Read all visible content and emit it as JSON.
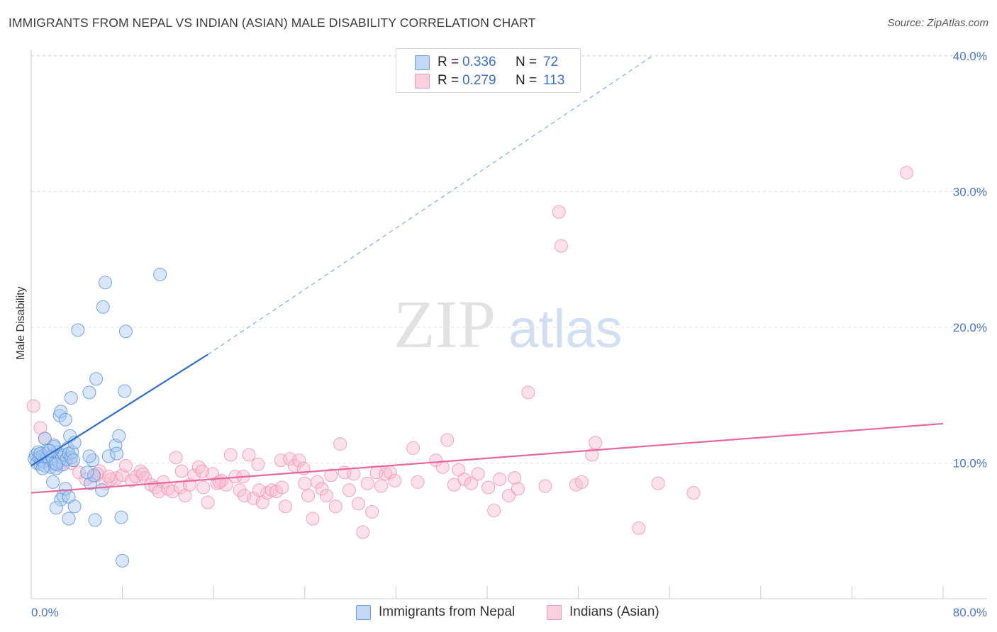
{
  "header": {
    "title": "IMMIGRANTS FROM NEPAL VS INDIAN (ASIAN) MALE DISABILITY CORRELATION CHART",
    "source": "Source: ZipAtlas.com"
  },
  "watermark": {
    "zip": "ZIP",
    "atlas": "atlas"
  },
  "legend_top": {
    "rows": [
      {
        "r_label": "R =",
        "r_value": "0.336",
        "n_label": "N =",
        "n_value": "72",
        "color": "#a8c8f0"
      },
      {
        "r_label": "R =",
        "r_value": "0.279",
        "n_label": "N =",
        "n_value": "113",
        "color": "#f5b8cb"
      }
    ]
  },
  "legend_bottom": {
    "items": [
      {
        "label": "Immigrants from Nepal",
        "color": "#a8c8f0"
      },
      {
        "label": "Indians (Asian)",
        "color": "#f5b8cb"
      }
    ]
  },
  "chart_data": {
    "type": "scatter",
    "title": "IMMIGRANTS FROM NEPAL VS INDIAN (ASIAN) MALE DISABILITY CORRELATION CHART",
    "xlabel": "",
    "ylabel": "Male Disability",
    "xlim": [
      0,
      80
    ],
    "ylim": [
      0,
      40
    ],
    "x_tick_labels": [
      "0.0%",
      "80.0%"
    ],
    "y_tick_labels": [
      "10.0%",
      "20.0%",
      "30.0%",
      "40.0%"
    ],
    "y_ticks": [
      10,
      20,
      30,
      40
    ],
    "grid": "horizontal dashed",
    "legend_placement": "top-center and bottom",
    "colors": {
      "nepal": "#5b9be0",
      "indian": "#f08bb0",
      "nepal_line": "#2f6fcc",
      "indian_line": "#e8679a",
      "axis_text": "#4a78c8"
    },
    "series": [
      {
        "name": "Immigrants from Nepal",
        "stats": {
          "R": 0.336,
          "N": 72
        },
        "trend": {
          "x0": 0,
          "y0": 9.8,
          "x1": 15.5,
          "y1": 18.0,
          "dashed_to_x": 54.5,
          "dashed_to_y": 40.0
        },
        "points": [
          [
            0.3,
            10.3
          ],
          [
            0.4,
            10.6
          ],
          [
            0.5,
            10.0
          ],
          [
            0.6,
            10.8
          ],
          [
            0.7,
            10.4
          ],
          [
            0.8,
            9.9
          ],
          [
            0.9,
            10.2
          ],
          [
            1.0,
            10.5
          ],
          [
            1.1,
            10.1
          ],
          [
            1.2,
            9.8
          ],
          [
            1.3,
            10.7
          ],
          [
            1.4,
            10.4
          ],
          [
            1.5,
            11.0
          ],
          [
            1.6,
            10.2
          ],
          [
            1.7,
            9.7
          ],
          [
            1.8,
            10.5
          ],
          [
            1.9,
            10.3
          ],
          [
            2.0,
            11.2
          ],
          [
            2.1,
            10.0
          ],
          [
            2.2,
            9.6
          ],
          [
            2.3,
            10.8
          ],
          [
            2.4,
            10.1
          ],
          [
            2.5,
            13.5
          ],
          [
            2.6,
            13.8
          ],
          [
            2.7,
            10.4
          ],
          [
            2.8,
            9.9
          ],
          [
            2.9,
            10.6
          ],
          [
            3.0,
            13.2
          ],
          [
            3.1,
            10.3
          ],
          [
            3.2,
            11.1
          ],
          [
            3.3,
            10.7
          ],
          [
            3.4,
            12.0
          ],
          [
            3.5,
            10.4
          ],
          [
            3.6,
            10.8
          ],
          [
            3.7,
            10.2
          ],
          [
            3.8,
            11.5
          ],
          [
            2.0,
            11.3
          ],
          [
            1.2,
            11.8
          ],
          [
            0.8,
            10.7
          ],
          [
            1.6,
            10.9
          ],
          [
            2.6,
            7.3
          ],
          [
            2.8,
            7.6
          ],
          [
            3.0,
            8.1
          ],
          [
            3.3,
            7.5
          ],
          [
            3.8,
            6.8
          ],
          [
            1.9,
            8.6
          ],
          [
            5.2,
            8.5
          ],
          [
            5.5,
            9.1
          ],
          [
            4.9,
            9.3
          ],
          [
            3.5,
            14.8
          ],
          [
            4.1,
            19.8
          ],
          [
            5.1,
            15.2
          ],
          [
            5.7,
            16.2
          ],
          [
            5.4,
            10.2
          ],
          [
            5.1,
            10.5
          ],
          [
            3.3,
            5.9
          ],
          [
            5.6,
            5.8
          ],
          [
            6.2,
            8.0
          ],
          [
            6.3,
            21.5
          ],
          [
            6.5,
            23.3
          ],
          [
            6.8,
            10.5
          ],
          [
            7.4,
            11.3
          ],
          [
            7.5,
            10.7
          ],
          [
            7.7,
            12.0
          ],
          [
            8.2,
            15.3
          ],
          [
            8.3,
            19.7
          ],
          [
            11.3,
            23.9
          ],
          [
            8.0,
            2.8
          ],
          [
            7.9,
            6.0
          ],
          [
            2.2,
            6.7
          ],
          [
            1.0,
            9.6
          ],
          [
            2.2,
            9.9
          ]
        ]
      },
      {
        "name": "Indians (Asian)",
        "stats": {
          "R": 0.279,
          "N": 113
        },
        "trend": {
          "x0": 0,
          "y0": 7.8,
          "x1": 80,
          "y1": 12.9
        },
        "points": [
          [
            0.2,
            14.2
          ],
          [
            0.8,
            12.6
          ],
          [
            1.2,
            11.8
          ],
          [
            1.8,
            10.5
          ],
          [
            2.5,
            9.8
          ],
          [
            3.0,
            10.2
          ],
          [
            3.5,
            10.0
          ],
          [
            4.2,
            9.3
          ],
          [
            4.8,
            8.8
          ],
          [
            5.5,
            9.0
          ],
          [
            6.0,
            9.4
          ],
          [
            6.5,
            8.5
          ],
          [
            7.0,
            8.8
          ],
          [
            7.5,
            8.9
          ],
          [
            8.0,
            9.1
          ],
          [
            8.3,
            9.8
          ],
          [
            8.8,
            8.7
          ],
          [
            9.2,
            9.0
          ],
          [
            9.6,
            9.4
          ],
          [
            10.0,
            8.9
          ],
          [
            10.5,
            8.4
          ],
          [
            10.9,
            8.2
          ],
          [
            11.2,
            7.9
          ],
          [
            11.6,
            8.6
          ],
          [
            12.0,
            8.1
          ],
          [
            12.4,
            7.9
          ],
          [
            12.7,
            10.4
          ],
          [
            13.1,
            8.2
          ],
          [
            13.5,
            7.6
          ],
          [
            13.9,
            8.4
          ],
          [
            14.3,
            9.1
          ],
          [
            14.7,
            9.7
          ],
          [
            15.1,
            8.2
          ],
          [
            15.5,
            7.1
          ],
          [
            15.9,
            9.2
          ],
          [
            16.3,
            8.5
          ],
          [
            16.7,
            8.7
          ],
          [
            17.1,
            8.4
          ],
          [
            17.5,
            10.6
          ],
          [
            17.9,
            9.0
          ],
          [
            18.3,
            8.0
          ],
          [
            18.7,
            7.6
          ],
          [
            19.1,
            10.6
          ],
          [
            19.5,
            7.4
          ],
          [
            19.9,
            9.9
          ],
          [
            20.3,
            7.1
          ],
          [
            20.7,
            7.8
          ],
          [
            21.1,
            8.0
          ],
          [
            21.5,
            7.9
          ],
          [
            21.9,
            10.2
          ],
          [
            22.3,
            6.8
          ],
          [
            22.7,
            10.3
          ],
          [
            23.1,
            9.8
          ],
          [
            23.5,
            10.2
          ],
          [
            23.9,
            9.6
          ],
          [
            24.3,
            7.6
          ],
          [
            24.7,
            5.9
          ],
          [
            25.1,
            8.6
          ],
          [
            25.5,
            8.1
          ],
          [
            25.9,
            7.6
          ],
          [
            26.3,
            9.1
          ],
          [
            26.7,
            6.8
          ],
          [
            27.1,
            11.4
          ],
          [
            27.5,
            9.3
          ],
          [
            27.9,
            8.0
          ],
          [
            28.3,
            9.2
          ],
          [
            28.7,
            7.0
          ],
          [
            29.1,
            4.9
          ],
          [
            29.5,
            8.5
          ],
          [
            29.9,
            6.4
          ],
          [
            30.3,
            9.3
          ],
          [
            30.7,
            8.3
          ],
          [
            31.1,
            9.2
          ],
          [
            31.5,
            9.3
          ],
          [
            31.9,
            8.7
          ],
          [
            33.5,
            11.1
          ],
          [
            33.9,
            8.6
          ],
          [
            35.5,
            10.2
          ],
          [
            36.1,
            9.7
          ],
          [
            36.5,
            11.7
          ],
          [
            37.1,
            8.4
          ],
          [
            37.5,
            9.5
          ],
          [
            38.0,
            8.8
          ],
          [
            38.6,
            8.5
          ],
          [
            39.2,
            9.2
          ],
          [
            40.1,
            8.2
          ],
          [
            40.6,
            6.5
          ],
          [
            41.1,
            8.8
          ],
          [
            41.9,
            7.6
          ],
          [
            42.4,
            8.9
          ],
          [
            42.7,
            8.1
          ],
          [
            43.6,
            15.2
          ],
          [
            45.1,
            8.3
          ],
          [
            46.3,
            28.5
          ],
          [
            46.5,
            26.0
          ],
          [
            47.8,
            8.4
          ],
          [
            48.3,
            8.6
          ],
          [
            49.2,
            10.6
          ],
          [
            49.5,
            11.5
          ],
          [
            53.3,
            5.2
          ],
          [
            55.0,
            8.5
          ],
          [
            58.1,
            7.8
          ],
          [
            76.8,
            31.4
          ],
          [
            5.8,
            9.2
          ],
          [
            6.8,
            9.0
          ],
          [
            9.8,
            9.2
          ],
          [
            13.2,
            9.4
          ],
          [
            15.0,
            9.4
          ],
          [
            16.5,
            8.6
          ],
          [
            18.6,
            9.0
          ],
          [
            20.0,
            8.0
          ],
          [
            22.0,
            8.2
          ],
          [
            24.0,
            8.5
          ]
        ]
      }
    ]
  }
}
